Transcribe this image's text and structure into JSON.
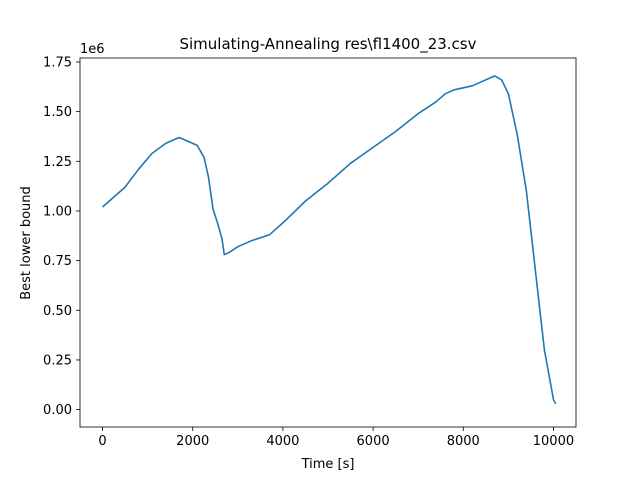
{
  "chart_data": {
    "type": "line",
    "title": "Simulating-Annealing res\\fl1400_23.csv",
    "xlabel": "Time [s]",
    "ylabel": "Best lower bound",
    "y_offset_label": "1e6",
    "xlim": [
      -500,
      10500
    ],
    "ylim": [
      -0.0875,
      1.77
    ],
    "x_ticks": [
      0,
      2000,
      4000,
      6000,
      8000,
      10000
    ],
    "x_tick_labels": [
      "0",
      "2000",
      "4000",
      "6000",
      "8000",
      "10000"
    ],
    "y_ticks": [
      0.0,
      0.25,
      0.5,
      0.75,
      1.0,
      1.25,
      1.5,
      1.75
    ],
    "y_tick_labels": [
      "0.00",
      "0.25",
      "0.50",
      "0.75",
      "1.00",
      "1.25",
      "1.50",
      "1.75"
    ],
    "grid": false,
    "series": [
      {
        "color": "#1f77b4",
        "x": [
          0,
          200,
          500,
          800,
          1100,
          1400,
          1600,
          1700,
          1900,
          2100,
          2250,
          2350,
          2450,
          2550,
          2650,
          2700,
          2800,
          3000,
          3300,
          3700,
          4000,
          4500,
          5000,
          5500,
          6000,
          6500,
          7000,
          7200,
          7400,
          7600,
          7800,
          8000,
          8200,
          8400,
          8600,
          8700,
          8850,
          9000,
          9200,
          9400,
          9600,
          9800,
          10000,
          10050
        ],
        "y": [
          1.02,
          1.06,
          1.12,
          1.21,
          1.29,
          1.34,
          1.36,
          1.37,
          1.35,
          1.33,
          1.27,
          1.17,
          1.01,
          0.94,
          0.86,
          0.78,
          0.79,
          0.82,
          0.85,
          0.88,
          0.94,
          1.05,
          1.14,
          1.24,
          1.32,
          1.4,
          1.49,
          1.52,
          1.55,
          1.59,
          1.61,
          1.62,
          1.63,
          1.65,
          1.67,
          1.68,
          1.66,
          1.59,
          1.38,
          1.1,
          0.7,
          0.3,
          0.05,
          0.03
        ]
      }
    ]
  }
}
